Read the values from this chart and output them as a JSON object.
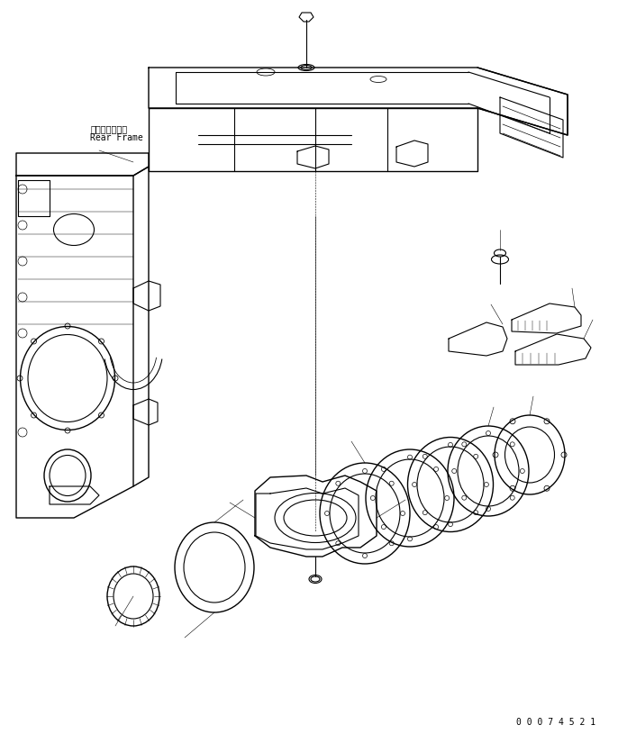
{
  "bg_color": "#ffffff",
  "line_color": "#000000",
  "line_width": 0.8,
  "label_japanese": "リヤーフレーム",
  "label_english": "Rear Frame",
  "part_number": "0 0 0 7 4 5 2 1",
  "title_fontsize": 7,
  "part_number_fontsize": 7,
  "figsize": [
    6.86,
    8.15
  ],
  "dpi": 100
}
